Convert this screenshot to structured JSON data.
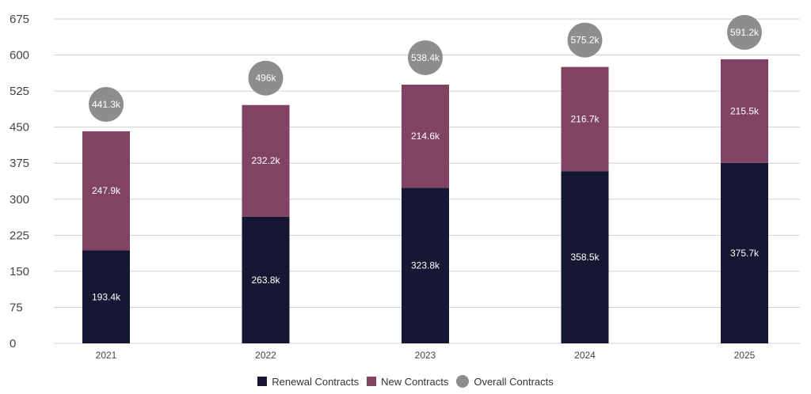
{
  "chart_data": {
    "type": "bar",
    "stacked": true,
    "title": "",
    "xlabel": "",
    "ylabel": "",
    "categories": [
      "2021",
      "2022",
      "2023",
      "2024",
      "2025"
    ],
    "series": [
      {
        "name": "Renewal Contracts",
        "color": "#161833",
        "values": [
          193.4,
          263.8,
          323.8,
          358.5,
          375.7
        ],
        "labels": [
          "193.4k",
          "263.8k",
          "323.8k",
          "358.5k",
          "375.7k"
        ]
      },
      {
        "name": "New Contracts",
        "color": "#804364",
        "values": [
          247.9,
          232.2,
          214.6,
          216.7,
          215.5
        ],
        "labels": [
          "247.9k",
          "232.2k",
          "214.6k",
          "216.7k",
          "215.5k"
        ]
      },
      {
        "name": "Overall Contracts",
        "color": "#8e8c8e",
        "marker": "circle",
        "values": [
          441.3,
          496,
          538.4,
          575.2,
          591.2
        ],
        "labels": [
          "441.3k",
          "496k",
          "538.4k",
          "575.2k",
          "591.2k"
        ]
      }
    ],
    "yticks": [
      0,
      75,
      150,
      225,
      300,
      375,
      450,
      525,
      600,
      675
    ],
    "ytick_labels": [
      "0",
      "75",
      "150",
      "225",
      "300",
      "375",
      "450",
      "525",
      "600",
      "675"
    ],
    "ylim": [
      0,
      675
    ],
    "grid": true,
    "legend_position": "bottom-center"
  },
  "legend": {
    "items": [
      {
        "label": "Renewal Contracts",
        "color": "#161833"
      },
      {
        "label": "New Contracts",
        "color": "#804364"
      },
      {
        "label": "Overall Contracts",
        "color": "#8e8c8e"
      }
    ]
  }
}
